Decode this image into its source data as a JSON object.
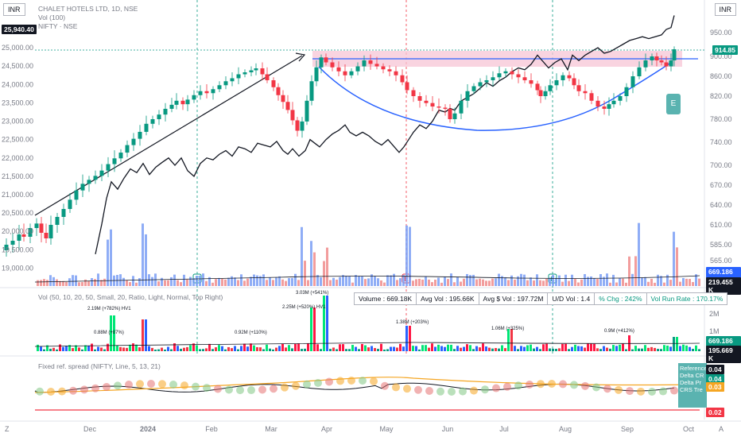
{
  "header": {
    "currency_left": "INR",
    "currency_right": "INR",
    "symbol_title": "CHALET HOTELS LTD, 1D, NSE",
    "vol_label": "Vol (100)",
    "compare_label": "NIFTY · NSE"
  },
  "colors": {
    "up": "#089981",
    "down": "#f23645",
    "compare": "#131722",
    "arc": "#2962ff",
    "zone": "#f7c6d6",
    "vol_up": "#7b9ff5",
    "vol_down": "#f08c8c",
    "avg_orange": "#f5a623"
  },
  "chart_data": {
    "type": "line",
    "title": "CHALET HOTELS LTD, 1D, NSE",
    "x_ticks": [
      "Dec",
      "2024",
      "Feb",
      "Mar",
      "Apr",
      "May",
      "Jun",
      "Jul",
      "Aug",
      "Sep",
      "Oct"
    ],
    "left_axis": {
      "label": "NIFTY",
      "ticks": [
        25500,
        25000,
        24500,
        24000,
        23500,
        23000,
        22500,
        22000,
        21500,
        21000,
        20500,
        20000,
        19500,
        19000
      ],
      "ylim": [
        18850,
        26200
      ]
    },
    "right_axis": {
      "label": "INR",
      "ticks": [
        950,
        900,
        860,
        820,
        780,
        740,
        700,
        670,
        640,
        610,
        585,
        565
      ],
      "ylim": [
        538,
        972
      ]
    },
    "price_close_series": {
      "name": "CHALET HOTELS LTD",
      "points": [
        [
          0,
          578
        ],
        [
          8,
          585
        ],
        [
          16,
          590
        ],
        [
          24,
          598
        ],
        [
          30,
          595
        ],
        [
          38,
          606
        ],
        [
          46,
          612
        ],
        [
          52,
          600
        ],
        [
          58,
          593
        ],
        [
          64,
          610
        ],
        [
          72,
          622
        ],
        [
          80,
          634
        ],
        [
          88,
          648
        ],
        [
          96,
          662
        ],
        [
          104,
          672
        ],
        [
          112,
          678
        ],
        [
          120,
          684
        ],
        [
          128,
          692
        ],
        [
          136,
          702
        ],
        [
          144,
          712
        ],
        [
          152,
          722
        ],
        [
          160,
          735
        ],
        [
          168,
          746
        ],
        [
          176,
          758
        ],
        [
          184,
          772
        ],
        [
          192,
          780
        ],
        [
          200,
          788
        ],
        [
          208,
          798
        ],
        [
          216,
          805
        ],
        [
          222,
          812
        ],
        [
          230,
          806
        ],
        [
          236,
          814
        ],
        [
          244,
          822
        ],
        [
          252,
          830
        ],
        [
          260,
          826
        ],
        [
          268,
          834
        ],
        [
          276,
          842
        ],
        [
          284,
          850
        ],
        [
          292,
          856
        ],
        [
          300,
          864
        ],
        [
          308,
          868
        ],
        [
          316,
          872
        ],
        [
          322,
          876
        ],
        [
          330,
          864
        ],
        [
          336,
          852
        ],
        [
          344,
          838
        ],
        [
          350,
          822
        ],
        [
          356,
          810
        ],
        [
          362,
          796
        ],
        [
          368,
          778
        ],
        [
          374,
          760
        ],
        [
          380,
          776
        ],
        [
          386,
          812
        ],
        [
          392,
          850
        ],
        [
          398,
          878
        ],
        [
          404,
          898
        ],
        [
          410,
          888
        ],
        [
          418,
          878
        ],
        [
          426,
          870
        ],
        [
          434,
          862
        ],
        [
          442,
          870
        ],
        [
          450,
          880
        ],
        [
          458,
          892
        ],
        [
          466,
          885
        ],
        [
          474,
          880
        ],
        [
          482,
          874
        ],
        [
          490,
          870
        ],
        [
          498,
          862
        ],
        [
          506,
          848
        ],
        [
          512,
          832
        ],
        [
          520,
          820
        ],
        [
          528,
          812
        ],
        [
          536,
          808
        ],
        [
          544,
          802
        ],
        [
          552,
          800
        ],
        [
          560,
          798
        ],
        [
          566,
          780
        ],
        [
          572,
          790
        ],
        [
          580,
          812
        ],
        [
          588,
          830
        ],
        [
          596,
          840
        ],
        [
          604,
          848
        ],
        [
          612,
          852
        ],
        [
          620,
          858
        ],
        [
          628,
          866
        ],
        [
          636,
          870
        ],
        [
          644,
          864
        ],
        [
          652,
          858
        ],
        [
          660,
          852
        ],
        [
          668,
          845
        ],
        [
          676,
          832
        ],
        [
          680,
          820
        ],
        [
          686,
          830
        ],
        [
          692,
          842
        ],
        [
          700,
          852
        ],
        [
          708,
          862
        ],
        [
          716,
          856
        ],
        [
          722,
          842
        ],
        [
          728,
          830
        ],
        [
          736,
          826
        ],
        [
          744,
          812
        ],
        [
          752,
          802
        ],
        [
          760,
          798
        ],
        [
          766,
          806
        ],
        [
          772,
          812
        ],
        [
          780,
          820
        ],
        [
          788,
          838
        ],
        [
          796,
          860
        ],
        [
          804,
          878
        ],
        [
          812,
          892
        ],
        [
          820,
          900
        ],
        [
          826,
          892
        ],
        [
          832,
          888
        ],
        [
          838,
          880
        ],
        [
          844,
          892
        ],
        [
          848,
          915
        ]
      ]
    },
    "nifty_series": {
      "name": "NIFTY",
      "points": [
        [
          120,
          19380
        ],
        [
          128,
          20200
        ],
        [
          134,
          20900
        ],
        [
          140,
          21350
        ],
        [
          148,
          21150
        ],
        [
          156,
          21450
        ],
        [
          164,
          21700
        ],
        [
          172,
          21600
        ],
        [
          180,
          21850
        ],
        [
          188,
          21550
        ],
        [
          196,
          21750
        ],
        [
          204,
          21880
        ],
        [
          212,
          22000
        ],
        [
          220,
          21800
        ],
        [
          228,
          22000
        ],
        [
          236,
          21650
        ],
        [
          244,
          21500
        ],
        [
          252,
          21850
        ],
        [
          260,
          22000
        ],
        [
          268,
          21950
        ],
        [
          276,
          22100
        ],
        [
          284,
          22200
        ],
        [
          292,
          22050
        ],
        [
          300,
          22300
        ],
        [
          308,
          22250
        ],
        [
          316,
          22150
        ],
        [
          324,
          22400
        ],
        [
          332,
          22350
        ],
        [
          340,
          22300
        ],
        [
          348,
          22450
        ],
        [
          356,
          22200
        ],
        [
          362,
          22100
        ],
        [
          368,
          22250
        ],
        [
          376,
          22050
        ],
        [
          384,
          22200
        ],
        [
          390,
          22500
        ],
        [
          396,
          22400
        ],
        [
          402,
          22300
        ],
        [
          410,
          22500
        ],
        [
          418,
          22650
        ],
        [
          426,
          22750
        ],
        [
          434,
          22900
        ],
        [
          440,
          22700
        ],
        [
          448,
          22600
        ],
        [
          456,
          22700
        ],
        [
          464,
          22600
        ],
        [
          472,
          22450
        ],
        [
          480,
          22350
        ],
        [
          488,
          22500
        ],
        [
          496,
          22300
        ],
        [
          502,
          22150
        ],
        [
          508,
          22300
        ],
        [
          514,
          22500
        ],
        [
          520,
          22700
        ],
        [
          528,
          22900
        ],
        [
          536,
          22800
        ],
        [
          544,
          23000
        ],
        [
          552,
          23300
        ],
        [
          560,
          23250
        ],
        [
          566,
          23350
        ],
        [
          572,
          23300
        ],
        [
          580,
          23550
        ],
        [
          588,
          23650
        ],
        [
          596,
          23750
        ],
        [
          604,
          23900
        ],
        [
          612,
          24050
        ],
        [
          620,
          23950
        ],
        [
          628,
          24100
        ],
        [
          636,
          24200
        ],
        [
          644,
          24350
        ],
        [
          652,
          24450
        ],
        [
          660,
          24400
        ],
        [
          668,
          24550
        ],
        [
          676,
          24800
        ],
        [
          682,
          24650
        ],
        [
          690,
          24450
        ],
        [
          698,
          24600
        ],
        [
          706,
          24700
        ],
        [
          714,
          24400
        ],
        [
          720,
          24800
        ],
        [
          728,
          24650
        ],
        [
          736,
          24800
        ],
        [
          744,
          24900
        ],
        [
          752,
          25000
        ],
        [
          760,
          24850
        ],
        [
          768,
          24900
        ],
        [
          776,
          25000
        ],
        [
          784,
          25100
        ],
        [
          792,
          25200
        ],
        [
          800,
          25250
        ],
        [
          808,
          25300
        ],
        [
          816,
          25250
        ],
        [
          824,
          25300
        ],
        [
          832,
          25350
        ],
        [
          838,
          25500
        ],
        [
          844,
          25550
        ],
        [
          848,
          25880
        ]
      ]
    },
    "annotations": [
      {
        "text": "25,940.40",
        "axis": "left"
      },
      {
        "text": "914.85",
        "axis": "right"
      },
      {
        "text": "669.186 K",
        "axis": "right"
      },
      {
        "text": "219.455 K",
        "axis": "right"
      },
      {
        "text": "E",
        "axis": "marker"
      }
    ],
    "volume_pane": {
      "label": "Vol (50, 10, 20, 50, Small, 20, Ratio, Light, Normal, Top Right)",
      "callouts": [
        "2.19M (+782%) HV1",
        "0.88M (+87%)",
        "0.92M (+110%)",
        "2.25M (+520%) HV1",
        "3.03M (+541%)",
        "1.38M (+203%)",
        "1.06M (+325%)",
        "0.9M (+412%)"
      ],
      "right_ticks": [
        "3M",
        "2M",
        "1M"
      ],
      "badges": [
        "669.186 K",
        "195.669 K"
      ]
    },
    "stats": {
      "volume": "Volume : 669.18K",
      "avg_vol": "Avg Vol : 195.66K",
      "avg_dollar": "Avg $ Vol : 197.72M",
      "ud": "U/D Vol : 1.4",
      "chg": "% Chg : 242%",
      "vrr": "Vol Run Rate : 170.17%"
    },
    "spread_pane": {
      "label": "Fixed ref. spread (NIFTY, Line, 5, 13, 21)",
      "right_ticks": [
        "0.04",
        "0.04",
        "0.03",
        "0.02"
      ],
      "legend": [
        "Reference",
        "Delta CR",
        "Delta Pr",
        "CRS Tre"
      ]
    }
  },
  "footer": {
    "left_icon": "Z",
    "right_icon": "A"
  }
}
